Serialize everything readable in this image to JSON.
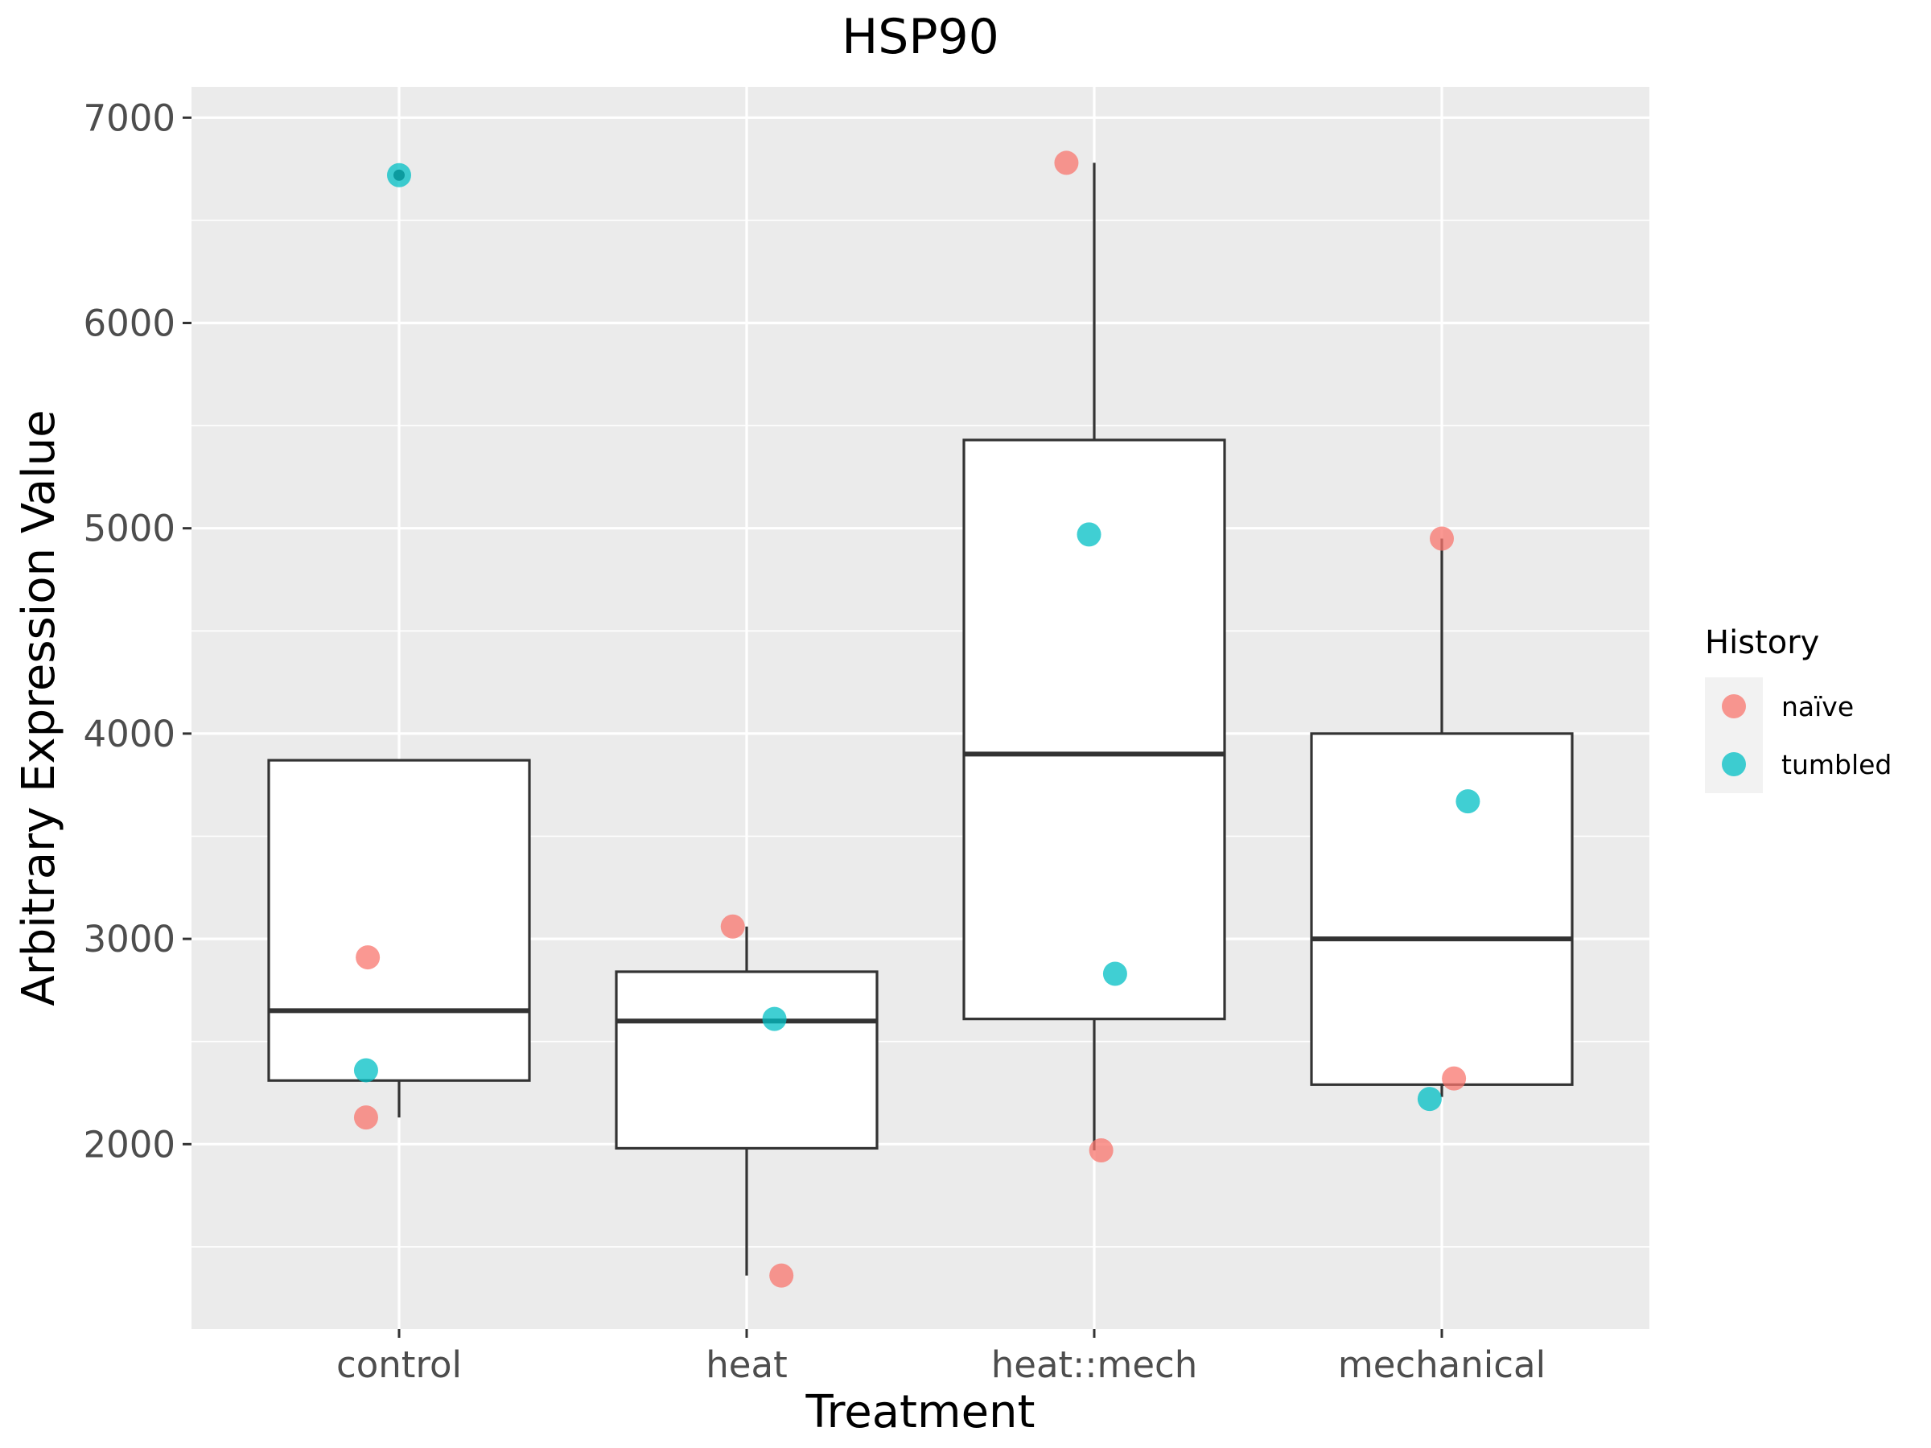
{
  "chart_data": {
    "type": "boxplot",
    "title": "HSP90",
    "xlabel": "Treatment",
    "ylabel": "Arbitrary Expression Value",
    "categories": [
      "control",
      "heat",
      "heat::mech",
      "mechanical"
    ],
    "ylim": [
      1100,
      7150
    ],
    "yticks": [
      2000,
      3000,
      4000,
      5000,
      6000,
      7000
    ],
    "yticklabels": [
      "2000",
      "3000",
      "4000",
      "5000",
      "6000",
      "7000"
    ],
    "grid": true,
    "boxes": [
      {
        "category": "control",
        "whisker_low": 2130,
        "q1": 2310,
        "median": 2650,
        "q3": 3870,
        "whisker_high": 3870,
        "outliers": [
          6720
        ]
      },
      {
        "category": "heat",
        "whisker_low": 1360,
        "q1": 1980,
        "median": 2600,
        "q3": 2840,
        "whisker_high": 3060,
        "outliers": []
      },
      {
        "category": "heat::mech",
        "whisker_low": 1970,
        "q1": 2610,
        "median": 3900,
        "q3": 5430,
        "whisker_high": 6780,
        "outliers": []
      },
      {
        "category": "mechanical",
        "whisker_low": 2230,
        "q1": 2290,
        "median": 3000,
        "q3": 4000,
        "whisker_high": 4950,
        "outliers": []
      }
    ],
    "legend": {
      "title": "History",
      "position": "right",
      "entries": [
        {
          "label": "naïve",
          "color": "#F8766D"
        },
        {
          "label": "tumbled",
          "color": "#00BFC4"
        }
      ]
    },
    "series": [
      {
        "name": "naïve",
        "color": "#F8766D",
        "points": [
          {
            "x": "control",
            "jitter": -0.09,
            "y": 2910
          },
          {
            "x": "control",
            "jitter": -0.095,
            "y": 2130
          },
          {
            "x": "heat",
            "jitter": -0.04,
            "y": 3060
          },
          {
            "x": "heat",
            "jitter": 0.1,
            "y": 1360
          },
          {
            "x": "heat::mech",
            "jitter": -0.08,
            "y": 6780
          },
          {
            "x": "heat::mech",
            "jitter": 0.02,
            "y": 1970
          },
          {
            "x": "mechanical",
            "jitter": 0.0,
            "y": 4950
          },
          {
            "x": "mechanical",
            "jitter": 0.035,
            "y": 2320
          }
        ]
      },
      {
        "name": "tumbled",
        "color": "#00BFC4",
        "points": [
          {
            "x": "control",
            "jitter": 0.0,
            "y": 6720
          },
          {
            "x": "control",
            "jitter": -0.095,
            "y": 2360
          },
          {
            "x": "heat",
            "jitter": 0.08,
            "y": 2610
          },
          {
            "x": "heat::mech",
            "jitter": -0.015,
            "y": 4970
          },
          {
            "x": "heat::mech",
            "jitter": 0.06,
            "y": 2830
          },
          {
            "x": "mechanical",
            "jitter": 0.075,
            "y": 3670
          },
          {
            "x": "mechanical",
            "jitter": -0.035,
            "y": 2220
          }
        ]
      }
    ]
  }
}
